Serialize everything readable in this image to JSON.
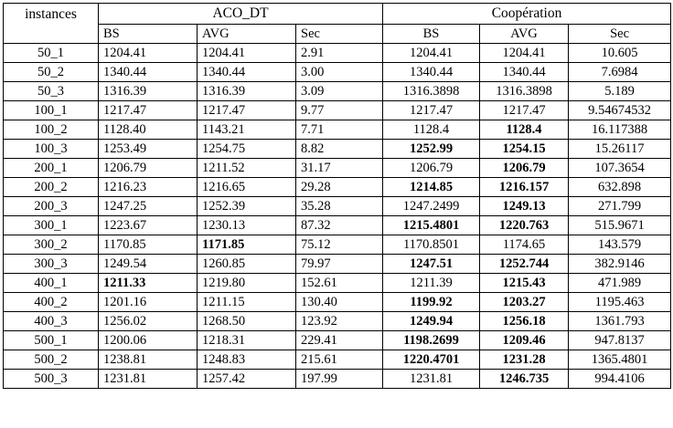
{
  "headers": {
    "instances": "instances",
    "group1": "ACO_DT",
    "group2": "Coopération",
    "sub": [
      "BS",
      "AVG",
      "Sec",
      "BS",
      "AVG",
      "Sec"
    ]
  },
  "rows": [
    {
      "id": "50_1",
      "cells": [
        {
          "v": "1204.41"
        },
        {
          "v": "1204.41"
        },
        {
          "v": "2.91"
        },
        {
          "v": "1204.41"
        },
        {
          "v": "1204.41"
        },
        {
          "v": "10.605"
        }
      ]
    },
    {
      "id": "50_2",
      "cells": [
        {
          "v": "1340.44"
        },
        {
          "v": "1340.44"
        },
        {
          "v": "3.00"
        },
        {
          "v": "1340.44"
        },
        {
          "v": "1340.44"
        },
        {
          "v": "7.6984"
        }
      ]
    },
    {
      "id": "50_3",
      "cells": [
        {
          "v": "1316.39"
        },
        {
          "v": "1316.39"
        },
        {
          "v": "3.09"
        },
        {
          "v": "1316.3898"
        },
        {
          "v": "1316.3898"
        },
        {
          "v": "5.189"
        }
      ]
    },
    {
      "id": "100_1",
      "cells": [
        {
          "v": "1217.47"
        },
        {
          "v": "1217.47"
        },
        {
          "v": "9.77"
        },
        {
          "v": "1217.47"
        },
        {
          "v": "1217.47"
        },
        {
          "v": "9.54674532"
        }
      ]
    },
    {
      "id": "100_2",
      "cells": [
        {
          "v": "1128.40"
        },
        {
          "v": "1143.21"
        },
        {
          "v": "7.71"
        },
        {
          "v": "1128.4"
        },
        {
          "v": "1128.4",
          "b": true
        },
        {
          "v": "16.117388"
        }
      ]
    },
    {
      "id": "100_3",
      "cells": [
        {
          "v": "1253.49"
        },
        {
          "v": "1254.75"
        },
        {
          "v": "8.82"
        },
        {
          "v": "1252.99",
          "b": true
        },
        {
          "v": "1254.15",
          "b": true
        },
        {
          "v": "15.26117"
        }
      ]
    },
    {
      "id": "200_1",
      "cells": [
        {
          "v": "1206.79"
        },
        {
          "v": "1211.52"
        },
        {
          "v": "31.17"
        },
        {
          "v": "1206.79"
        },
        {
          "v": "1206.79",
          "b": true
        },
        {
          "v": "107.3654"
        }
      ]
    },
    {
      "id": "200_2",
      "cells": [
        {
          "v": "1216.23"
        },
        {
          "v": "1216.65"
        },
        {
          "v": "29.28"
        },
        {
          "v": "1214.85",
          "b": true
        },
        {
          "v": "1216.157",
          "b": true
        },
        {
          "v": "632.898"
        }
      ]
    },
    {
      "id": "200_3",
      "cells": [
        {
          "v": "1247.25"
        },
        {
          "v": "1252.39"
        },
        {
          "v": "35.28"
        },
        {
          "v": "1247.2499"
        },
        {
          "v": "1249.13",
          "b": true
        },
        {
          "v": "271.799"
        }
      ]
    },
    {
      "id": "300_1",
      "cells": [
        {
          "v": "1223.67"
        },
        {
          "v": "1230.13"
        },
        {
          "v": "87.32"
        },
        {
          "v": "1215.4801",
          "b": true
        },
        {
          "v": "1220.763",
          "b": true
        },
        {
          "v": "515.9671"
        }
      ]
    },
    {
      "id": "300_2",
      "cells": [
        {
          "v": "1170.85"
        },
        {
          "v": "1171.85",
          "b": true
        },
        {
          "v": "75.12"
        },
        {
          "v": "1170.8501"
        },
        {
          "v": "1174.65"
        },
        {
          "v": "143.579"
        }
      ]
    },
    {
      "id": "300_3",
      "cells": [
        {
          "v": "1249.54"
        },
        {
          "v": "1260.85"
        },
        {
          "v": "79.97"
        },
        {
          "v": "1247.51",
          "b": true
        },
        {
          "v": "1252.744",
          "b": true
        },
        {
          "v": "382.9146"
        }
      ]
    },
    {
      "id": "400_1",
      "cells": [
        {
          "v": "1211.33",
          "b": true
        },
        {
          "v": "1219.80"
        },
        {
          "v": "152.61"
        },
        {
          "v": "1211.39"
        },
        {
          "v": "1215.43",
          "b": true
        },
        {
          "v": "471.989"
        }
      ]
    },
    {
      "id": "400_2",
      "cells": [
        {
          "v": "1201.16"
        },
        {
          "v": "1211.15"
        },
        {
          "v": "130.40"
        },
        {
          "v": "1199.92",
          "b": true
        },
        {
          "v": "1203.27",
          "b": true
        },
        {
          "v": "1195.463"
        }
      ]
    },
    {
      "id": "400_3",
      "cells": [
        {
          "v": "1256.02"
        },
        {
          "v": "1268.50"
        },
        {
          "v": "123.92"
        },
        {
          "v": "1249.94",
          "b": true
        },
        {
          "v": "1256.18",
          "b": true
        },
        {
          "v": "1361.793"
        }
      ]
    },
    {
      "id": "500_1",
      "cells": [
        {
          "v": "1200.06"
        },
        {
          "v": "1218.31"
        },
        {
          "v": "229.41"
        },
        {
          "v": "1198.2699",
          "b": true
        },
        {
          "v": "1209.46",
          "b": true
        },
        {
          "v": "947.8137"
        }
      ]
    },
    {
      "id": "500_2",
      "cells": [
        {
          "v": "1238.81"
        },
        {
          "v": "1248.83"
        },
        {
          "v": "215.61"
        },
        {
          "v": "1220.4701",
          "b": true
        },
        {
          "v": "1231.28",
          "b": true
        },
        {
          "v": "1365.4801"
        }
      ]
    },
    {
      "id": "500_3",
      "cells": [
        {
          "v": "1231.81"
        },
        {
          "v": "1257.42"
        },
        {
          "v": "197.99"
        },
        {
          "v": "1231.81"
        },
        {
          "v": "1246.735",
          "b": true
        },
        {
          "v": "994.4106"
        }
      ]
    }
  ]
}
